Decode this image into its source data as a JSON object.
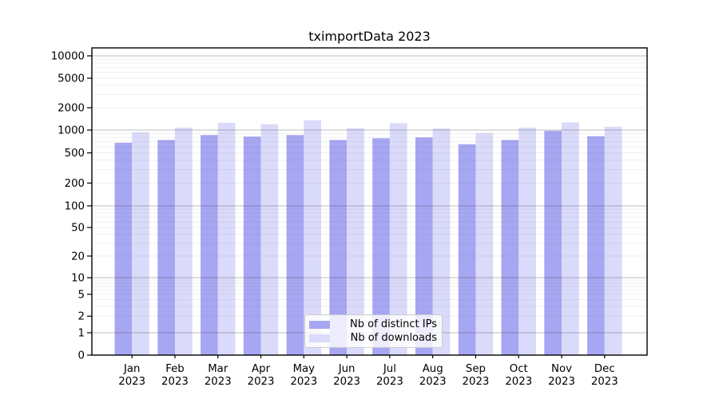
{
  "chart_data": {
    "type": "bar",
    "title": "tximportData 2023",
    "x_year": "2023",
    "categories": [
      "Jan",
      "Feb",
      "Mar",
      "Apr",
      "May",
      "Jun",
      "Jul",
      "Aug",
      "Sep",
      "Oct",
      "Nov",
      "Dec"
    ],
    "series": [
      {
        "name": "Nb of distinct IPs",
        "color": "#a6a6f3",
        "values": [
          680,
          740,
          860,
          820,
          860,
          740,
          780,
          800,
          650,
          740,
          980,
          830
        ]
      },
      {
        "name": "Nb of downloads",
        "color": "#dadafa",
        "values": [
          935,
          1080,
          1250,
          1200,
          1360,
          1060,
          1240,
          1050,
          915,
          1080,
          1270,
          1110
        ]
      }
    ],
    "xlabel": "",
    "ylabel": "",
    "y_scale": "log-with-zero",
    "ylim": [
      0,
      12800
    ],
    "y_ticks": [
      10000,
      5000,
      2000,
      1000,
      500,
      200,
      100,
      50,
      20,
      10,
      5,
      2,
      1,
      0
    ],
    "y_tick_labels": [
      "10000",
      "5000",
      "2000",
      "1000",
      "500",
      "200",
      "100",
      "50",
      "20",
      "10",
      "5",
      "2",
      "1",
      "0"
    ],
    "grid": true,
    "legend_position": "lower center",
    "colors": {
      "major_grid": "rgba(70,70,70,0.28)",
      "minor_grid": "rgba(120,120,120,0.12)",
      "spine": "#000000",
      "text": "#000000"
    }
  }
}
